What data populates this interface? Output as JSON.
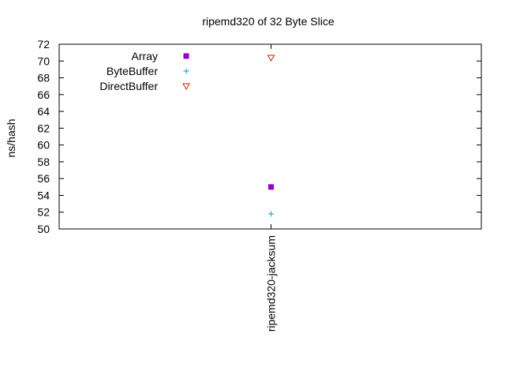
{
  "chart_data": {
    "type": "scatter",
    "title": "ripemd320 of 32 Byte Slice",
    "xlabel": "",
    "ylabel": "ns/hash",
    "categories": [
      "ripemd320-jacksum"
    ],
    "ylim": [
      50,
      72
    ],
    "yticks": [
      50,
      52,
      54,
      56,
      58,
      60,
      62,
      64,
      66,
      68,
      70,
      72
    ],
    "grid": false,
    "legend_position": "top-left",
    "series": [
      {
        "name": "Array",
        "marker": "filled-square",
        "color": "#9400d3",
        "values": [
          55.0
        ]
      },
      {
        "name": "ByteBuffer",
        "marker": "plus",
        "color": "#009ee0",
        "values": [
          51.8
        ]
      },
      {
        "name": "DirectBuffer",
        "marker": "open-triangle-down",
        "color": "#cc2200",
        "values": [
          70.4
        ]
      }
    ]
  }
}
